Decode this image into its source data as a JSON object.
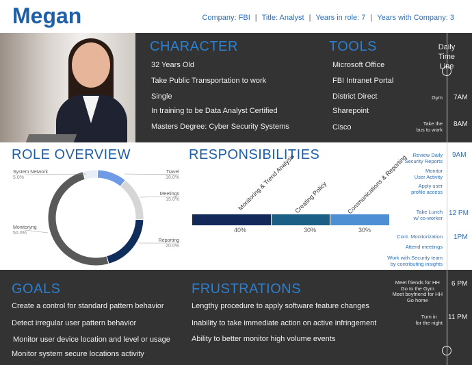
{
  "header": {
    "name": "Megan",
    "company": "Company: FBI",
    "title": "Title: Analyst",
    "years_in_role": "Years in role: 7",
    "years_with_company": "Years with Company: 3",
    "separator": "|"
  },
  "character": {
    "title": "CHARACTER",
    "items": [
      "32 Years Old",
      "Take Public Transportation to work",
      "Single",
      "In training to be Data Analyst Certified",
      "Masters Degree: Cyber Security Systems"
    ]
  },
  "tools": {
    "title": "TOOLS",
    "items": [
      "Microsoft Office",
      "FBI Intranet Portal",
      "District Direct",
      "Sharepoint",
      "Cisco"
    ]
  },
  "timeline": {
    "title_line1": "Daily",
    "title_line2": "Time Line",
    "entries": [
      {
        "label": "Gym",
        "time": "7AM"
      },
      {
        "label": "Take the\nbus to work",
        "time": "8AM"
      },
      {
        "label": "Review Daily\nSecurity Reports",
        "time": "9AM"
      },
      {
        "label": "Monitor\nUser Activity",
        "time": ""
      },
      {
        "label": "Apply user\nprofile access",
        "time": ""
      },
      {
        "label": "Take Lunch\nw/ co-worker",
        "time": "12 PM"
      },
      {
        "label": "Cont. Monitorization",
        "time": "1PM"
      },
      {
        "label": "Attend meetings",
        "time": ""
      },
      {
        "label": "Work with Security team\nby contributing insights",
        "time": ""
      },
      {
        "label": "Meet friends for HH\nGo to the Gym\nMeet boyfriend for HH\nGo home",
        "time": "6 PM"
      },
      {
        "label": "Turn in\nfor the night",
        "time": "11 PM"
      }
    ]
  },
  "role_overview": {
    "title": "ROLE OVERVIEW"
  },
  "chart_data": {
    "type": "pie",
    "categories": [
      "Travel",
      "Meetings",
      "Reporting",
      "Monitoryng",
      "System Network"
    ],
    "values": [
      10.0,
      15.0,
      20.0,
      50.0,
      5.0
    ],
    "value_labels": [
      "10.0%",
      "15.0%",
      "20.0%",
      "50.0%",
      "5.0%"
    ],
    "colors": [
      "#6f9be6",
      "#d6d6d6",
      "#0f2e5c",
      "#595959",
      "#e9eef6"
    ],
    "donut": true
  },
  "responsibilities": {
    "title": "RESPONSIBILITIES",
    "items": [
      {
        "label": "Monitoring &\nTrend Analysis",
        "value": 40,
        "pct": "40%",
        "color": "#12295a"
      },
      {
        "label": "Creating Policy",
        "value": 30,
        "pct": "30%",
        "color": "#1b5f86"
      },
      {
        "label": "Communications\n& Reporting",
        "value": 30,
        "pct": "30%",
        "color": "#4e8fd4"
      }
    ]
  },
  "goals": {
    "title": "GOALS",
    "items": [
      "Create a control for standard pattern behavior",
      "Detect irregular user pattern  behavior",
      "Monitor user device location and level or usage",
      "Monitor system secure locations activity"
    ]
  },
  "frustrations": {
    "title": "FRUSTRATIONS",
    "items": [
      "Lengthy procedure to apply software feature changes",
      "Inability to take immediate action on active infringement",
      "Ability to better monitor high volume events"
    ]
  }
}
